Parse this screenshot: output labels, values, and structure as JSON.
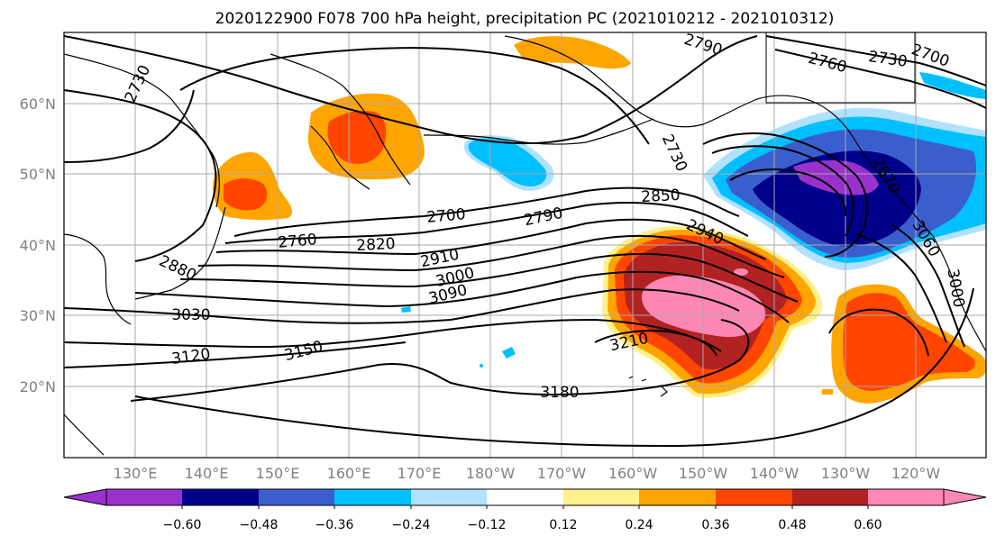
{
  "title": "2020122900 F078 700 hPa height, precipitation PC (2021010212 - 2021010312)",
  "map": {
    "lat_labels": [
      "60°N",
      "50°N",
      "40°N",
      "30°N",
      "20°N"
    ],
    "lon_labels": [
      "130°E",
      "140°E",
      "150°E",
      "160°E",
      "170°E",
      "180°W",
      "170°W",
      "160°W",
      "150°W",
      "140°W",
      "130°W",
      "120°W"
    ],
    "contour_labels": [
      {
        "text": "2730",
        "angle": -65
      },
      {
        "text": "2790",
        "angle": 18
      },
      {
        "text": "2760",
        "angle": 15
      },
      {
        "text": "2730",
        "angle": 8
      },
      {
        "text": "2700",
        "angle": 20
      },
      {
        "text": "2730",
        "angle": 65
      },
      {
        "text": "2700",
        "angle": -5
      },
      {
        "text": "2850",
        "angle": -3
      },
      {
        "text": "2760",
        "angle": -5
      },
      {
        "text": "2820",
        "angle": -3
      },
      {
        "text": "2790",
        "angle": -12
      },
      {
        "text": "2910",
        "angle": -12
      },
      {
        "text": "3000",
        "angle": -14
      },
      {
        "text": "3090",
        "angle": -14
      },
      {
        "text": "2940",
        "angle": 25
      },
      {
        "text": "2880",
        "angle": 25
      },
      {
        "text": "3030",
        "angle": 0
      },
      {
        "text": "3120",
        "angle": -8
      },
      {
        "text": "3150",
        "angle": -15
      },
      {
        "text": "3210",
        "angle": -12
      },
      {
        "text": "3180",
        "angle": 0
      },
      {
        "text": "3060",
        "angle": 60
      },
      {
        "text": "3000",
        "angle": 80
      },
      {
        "text": "2670",
        "angle": 60
      }
    ]
  },
  "colorbar": {
    "ticks": [
      "−0.60",
      "−0.48",
      "−0.36",
      "−0.24",
      "−0.12",
      "0.12",
      "0.24",
      "0.36",
      "0.48",
      "0.60"
    ],
    "colors": [
      "#9932cc",
      "#00008b",
      "#3a5fcd",
      "#00bfff",
      "#b0e2ff",
      "#ffffff",
      "#fff08c",
      "#ffa500",
      "#ff4500",
      "#b22222",
      "#ff87b4"
    ],
    "under_color": "#9932cc",
    "over_color": "#ff87b4"
  }
}
